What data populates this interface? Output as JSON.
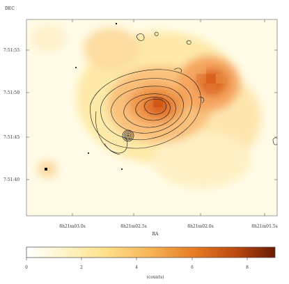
{
  "image": {
    "y_axis_title": "DEC",
    "x_axis_title": "RA",
    "y_tick_labels": [
      "7:51:55",
      "7:51:50",
      "7:51:45",
      "7:51:40"
    ],
    "x_tick_labels": [
      "8h21m03.0s",
      "8h21m02.5s",
      "8h21m02.0s",
      "8h21m01.5s"
    ],
    "colorbar": {
      "tick_labels": [
        "0",
        "2",
        "4",
        "6",
        "8"
      ],
      "unit_label": "(counts)",
      "range": [
        0,
        9
      ],
      "colors": [
        "#ffffff",
        "#fff4c8",
        "#fde08a",
        "#f7b356",
        "#e67a22",
        "#b84710",
        "#6b1c05"
      ]
    },
    "colors": {
      "background_low": "#fffbe6",
      "emission_peak": "#d8601a",
      "contour": "#111111"
    }
  }
}
